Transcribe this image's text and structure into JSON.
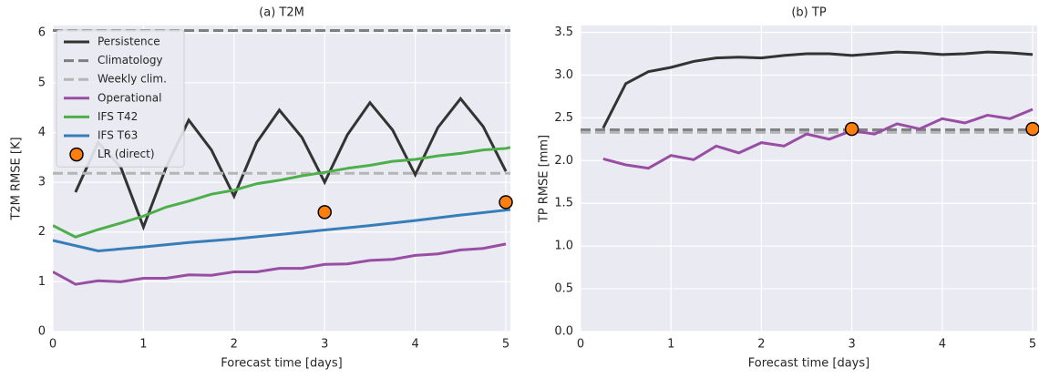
{
  "chart_data": [
    {
      "type": "line",
      "title": "(a) T2M",
      "x_label": "Forecast time [days]",
      "y_label": "T2M RMSE [K]",
      "xlim": [
        0,
        5.05
      ],
      "ylim": [
        0,
        6.15
      ],
      "xticks": [
        0,
        1,
        2,
        3,
        4,
        5
      ],
      "yticks": [
        0,
        1,
        2,
        3,
        4,
        5,
        6
      ],
      "grid": true,
      "legend": "upper left",
      "series": [
        {
          "name": "Persistence",
          "color": "#333333",
          "style": "solid",
          "x": [
            0.25,
            0.5,
            0.75,
            1,
            1.25,
            1.5,
            1.75,
            2,
            2.25,
            2.5,
            2.75,
            3,
            3.25,
            3.5,
            3.75,
            4,
            4.25,
            4.5,
            4.75,
            5
          ],
          "values": [
            2.8,
            3.8,
            3.3,
            2.1,
            3.3,
            4.25,
            3.65,
            2.72,
            3.8,
            4.45,
            3.9,
            3.0,
            3.95,
            4.6,
            4.05,
            3.15,
            4.1,
            4.68,
            4.12,
            3.22
          ]
        },
        {
          "name": "Climatology",
          "color": "#7f7f7f",
          "style": "dashed",
          "x": [
            0,
            5.05
          ],
          "values": [
            6.05,
            6.05
          ]
        },
        {
          "name": "Weekly clim.",
          "color": "#b5b5b5",
          "style": "dashed",
          "x": [
            0,
            5.05
          ],
          "values": [
            3.18,
            3.18
          ]
        },
        {
          "name": "Operational",
          "color": "#984ea3",
          "style": "solid",
          "x": [
            0,
            0.25,
            0.5,
            0.75,
            1,
            1.25,
            1.5,
            1.75,
            2,
            2.25,
            2.5,
            2.75,
            3,
            3.25,
            3.5,
            3.75,
            4,
            4.25,
            4.5,
            4.75,
            5
          ],
          "values": [
            1.2,
            0.95,
            1.02,
            1.0,
            1.07,
            1.07,
            1.14,
            1.13,
            1.2,
            1.2,
            1.27,
            1.27,
            1.35,
            1.36,
            1.43,
            1.45,
            1.53,
            1.56,
            1.64,
            1.67,
            1.76
          ]
        },
        {
          "name": "IFS T42",
          "color": "#4daf4a",
          "style": "solid",
          "x": [
            0,
            0.25,
            0.5,
            0.75,
            1,
            1.25,
            1.5,
            1.75,
            2,
            2.25,
            2.5,
            2.75,
            3,
            3.25,
            3.5,
            3.75,
            4,
            4.25,
            4.5,
            4.75,
            5,
            5.05
          ],
          "values": [
            2.13,
            1.9,
            2.05,
            2.18,
            2.32,
            2.5,
            2.62,
            2.76,
            2.84,
            2.97,
            3.04,
            3.13,
            3.2,
            3.28,
            3.34,
            3.42,
            3.46,
            3.53,
            3.58,
            3.65,
            3.68,
            3.7
          ]
        },
        {
          "name": "IFS T63",
          "color": "#377eb8",
          "style": "solid",
          "x": [
            0,
            0.5,
            1,
            1.5,
            2,
            2.5,
            3,
            3.5,
            4,
            4.5,
            5,
            5.05
          ],
          "values": [
            1.83,
            1.62,
            1.7,
            1.79,
            1.86,
            1.95,
            2.04,
            2.13,
            2.23,
            2.34,
            2.44,
            2.45
          ]
        },
        {
          "name": "LR (direct)",
          "color": "#ff7f0e",
          "style": "marker",
          "x": [
            3,
            5
          ],
          "values": [
            2.4,
            2.6
          ]
        }
      ]
    },
    {
      "type": "line",
      "title": "(b) TP",
      "x_label": "Forecast time [days]",
      "y_label": "TP RMSE [mm]",
      "xlim": [
        0,
        5.05
      ],
      "ylim": [
        0,
        3.58
      ],
      "xticks": [
        0,
        1,
        2,
        3,
        4,
        5
      ],
      "yticks": [
        {
          "value": 0,
          "label": "0.0"
        },
        0.5,
        {
          "value": 1,
          "label": "1.0"
        },
        1.5,
        {
          "value": 2,
          "label": "2.0"
        },
        2.5,
        {
          "value": 3,
          "label": "3.0"
        },
        3.5
      ],
      "grid": true,
      "series": [
        {
          "color": "#333333",
          "style": "solid",
          "x": [
            0.25,
            0.5,
            0.75,
            1,
            1.25,
            1.5,
            1.75,
            2,
            2.25,
            2.5,
            2.75,
            3,
            3.25,
            3.5,
            3.75,
            4,
            4.25,
            4.5,
            4.75,
            5
          ],
          "values": [
            2.38,
            2.9,
            3.04,
            3.09,
            3.16,
            3.2,
            3.21,
            3.2,
            3.23,
            3.25,
            3.25,
            3.23,
            3.25,
            3.27,
            3.26,
            3.24,
            3.25,
            3.27,
            3.26,
            3.24
          ]
        },
        {
          "color": "#7f7f7f",
          "style": "dashed",
          "x": [
            0,
            5.05
          ],
          "values": [
            2.36,
            2.36
          ]
        },
        {
          "color": "#b5b5b5",
          "style": "dashed",
          "x": [
            0,
            5.05
          ],
          "values": [
            2.33,
            2.33
          ]
        },
        {
          "color": "#984ea3",
          "style": "solid",
          "x": [
            0.25,
            0.5,
            0.75,
            1,
            1.25,
            1.5,
            1.75,
            2,
            2.25,
            2.5,
            2.75,
            3,
            3.25,
            3.5,
            3.75,
            4,
            4.25,
            4.5,
            4.75,
            5
          ],
          "values": [
            2.02,
            1.95,
            1.91,
            2.06,
            2.01,
            2.17,
            2.09,
            2.21,
            2.17,
            2.31,
            2.25,
            2.35,
            2.31,
            2.43,
            2.37,
            2.49,
            2.44,
            2.53,
            2.49,
            2.6
          ]
        },
        {
          "color": "#ff7f0e",
          "style": "marker",
          "x": [
            3,
            5
          ],
          "values": [
            2.37,
            2.37
          ]
        }
      ]
    }
  ]
}
